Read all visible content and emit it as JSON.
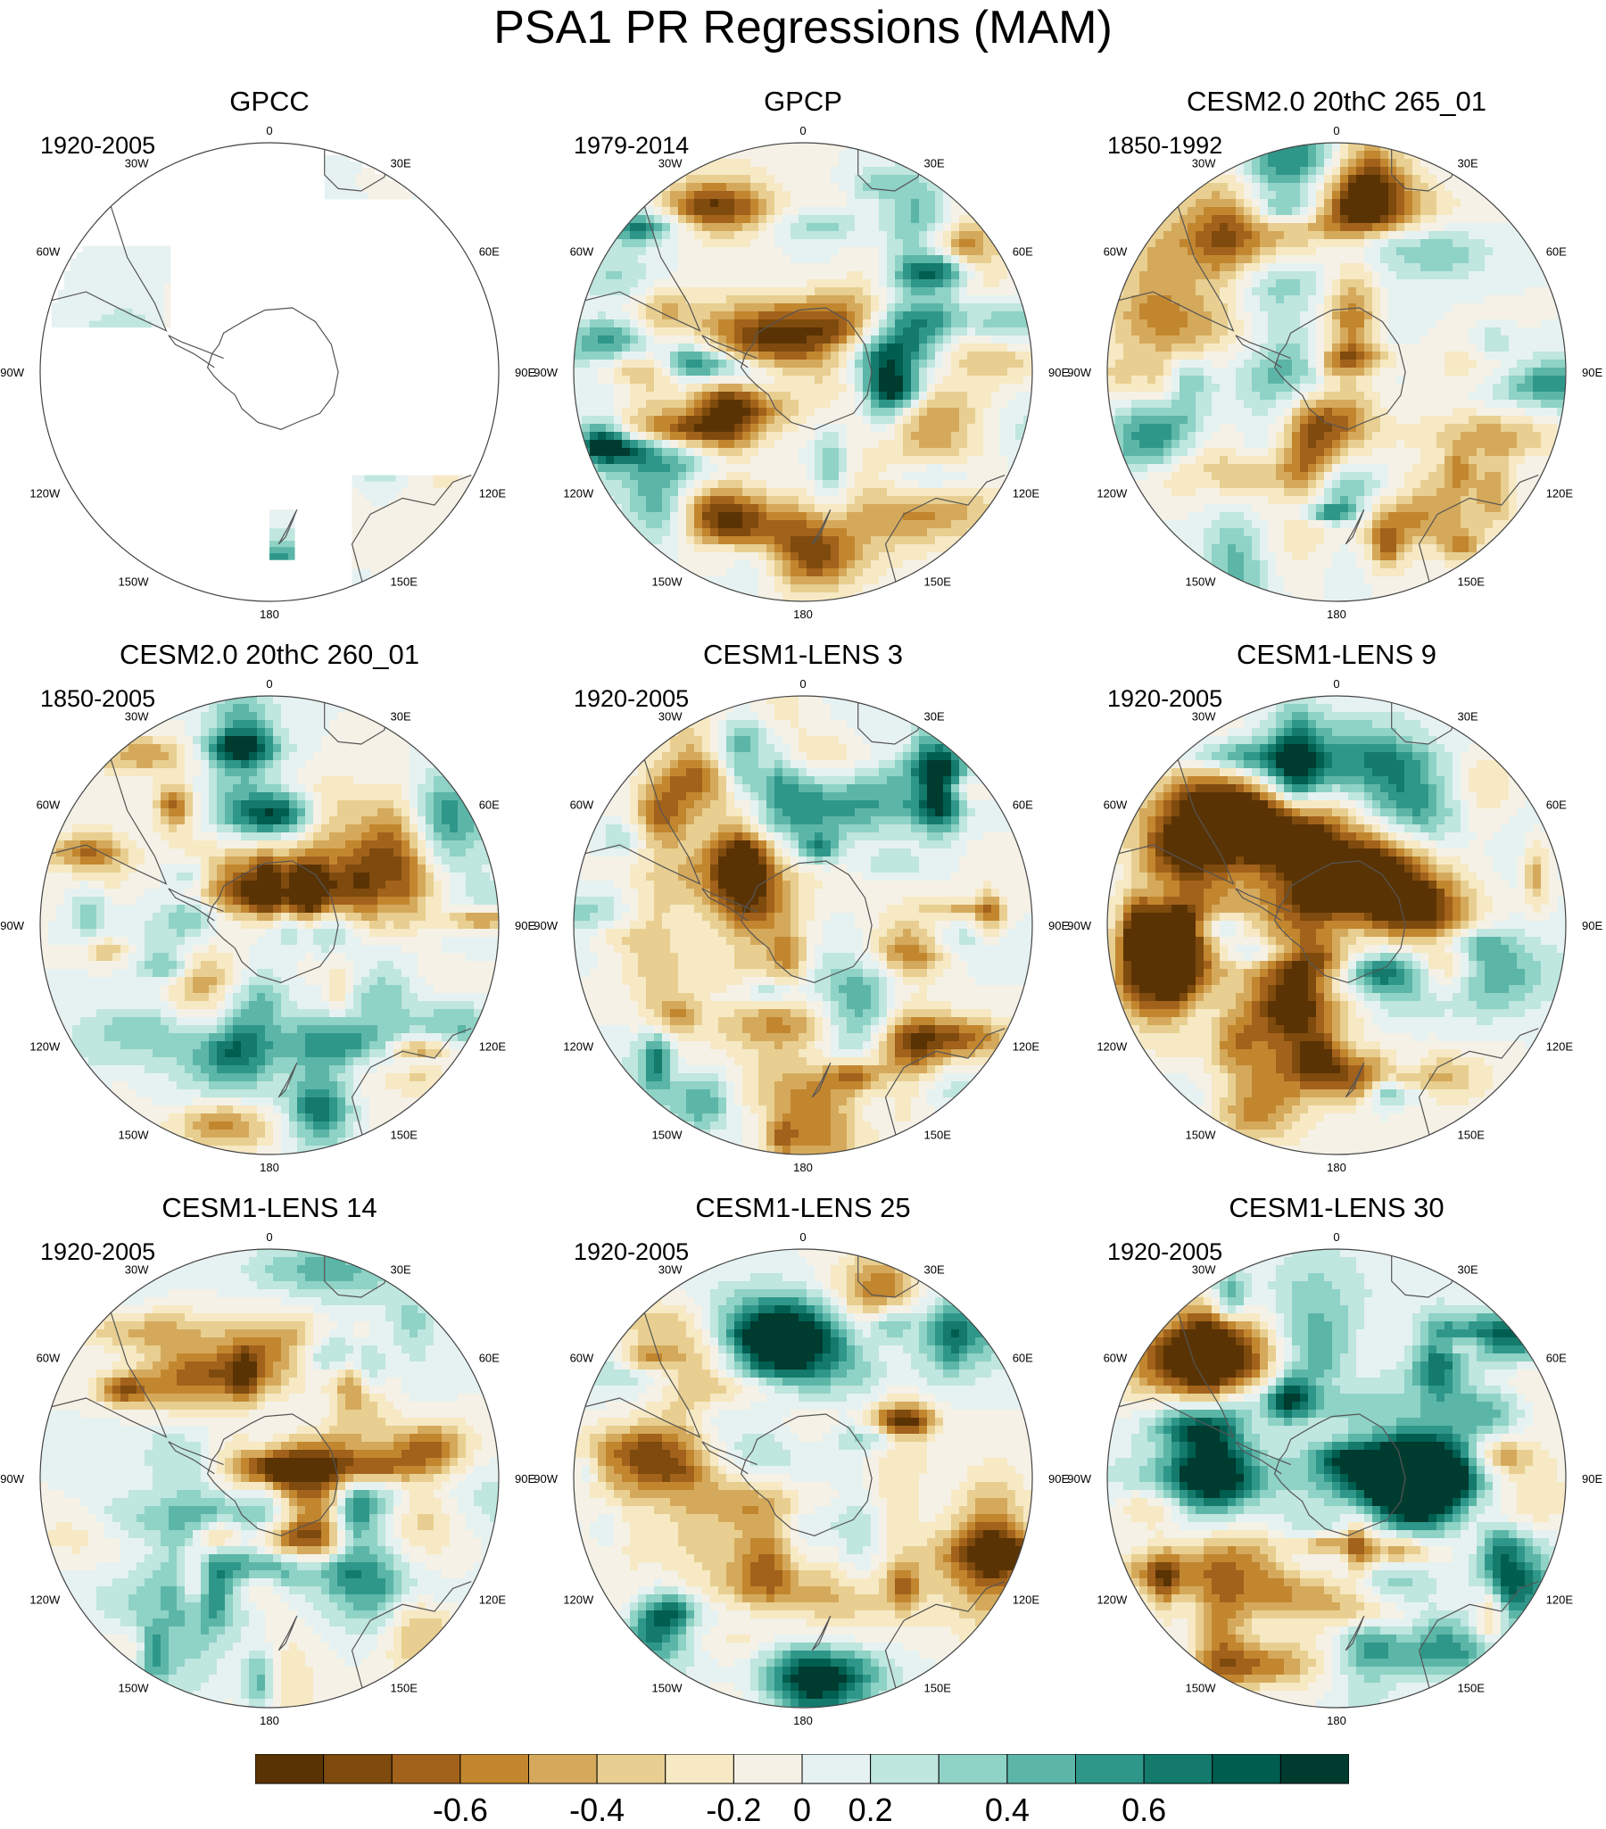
{
  "title": "PSA1 PR Regressions (MAM)",
  "longitude_labels": [
    "0",
    "30E",
    "60E",
    "90E",
    "120E",
    "150E",
    "180",
    "150W",
    "120W",
    "90W",
    "60W",
    "30W"
  ],
  "panels": [
    {
      "name": "GPCC",
      "period": "1920-2005",
      "coverage": "land"
    },
    {
      "name": "GPCP",
      "period": "1979-2014",
      "coverage": "full"
    },
    {
      "name": "CESM2.0 20thC 265_01",
      "period": "1850-1992",
      "coverage": "full"
    },
    {
      "name": "CESM2.0 20thC 260_01",
      "period": "1850-2005",
      "coverage": "full"
    },
    {
      "name": "CESM1-LENS 3",
      "period": "1920-2005",
      "coverage": "full"
    },
    {
      "name": "CESM1-LENS 9",
      "period": "1920-2005",
      "coverage": "full"
    },
    {
      "name": "CESM1-LENS 14",
      "period": "1920-2005",
      "coverage": "full"
    },
    {
      "name": "CESM1-LENS 25",
      "period": "1920-2005",
      "coverage": "full"
    },
    {
      "name": "CESM1-LENS 30",
      "period": "1920-2005",
      "coverage": "full"
    }
  ],
  "colorbar": {
    "colors": [
      "#5a3304",
      "#7e4a0d",
      "#a2621b",
      "#c2862f",
      "#d5a95b",
      "#e8cf91",
      "#f6e9c4",
      "#f5f1e6",
      "#e6f2f1",
      "#bfe6df",
      "#8fd2c6",
      "#5cb6a7",
      "#2f978a",
      "#137a6c",
      "#005e50",
      "#003b30"
    ],
    "tick_labels": [
      "-0.6",
      "-0.4",
      "-0.2",
      "0",
      "0.2",
      "0.4",
      "0.6"
    ]
  }
}
